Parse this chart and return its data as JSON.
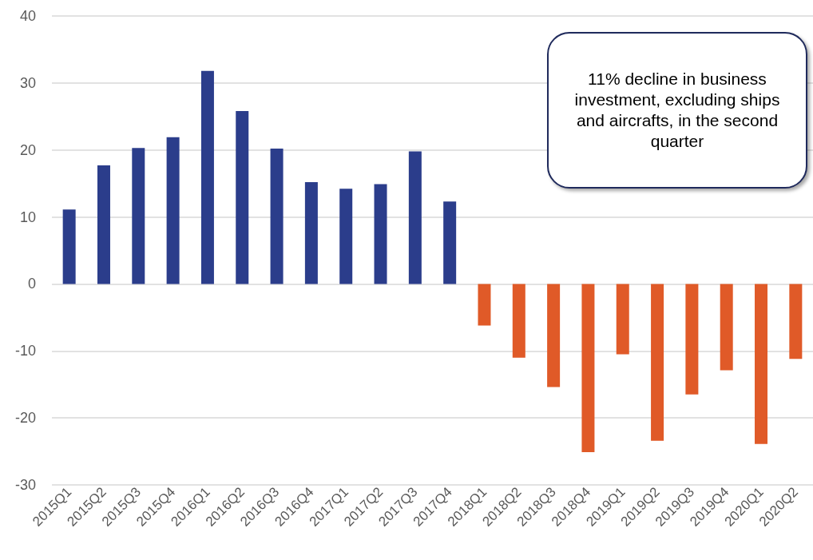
{
  "chart_data": {
    "type": "bar",
    "categories": [
      "2015Q1",
      "2015Q2",
      "2015Q3",
      "2015Q4",
      "2016Q1",
      "2016Q2",
      "2016Q3",
      "2016Q4",
      "2017Q1",
      "2017Q2",
      "2017Q3",
      "2017Q4",
      "2018Q1",
      "2018Q2",
      "2018Q3",
      "2018Q4",
      "2019Q1",
      "2019Q2",
      "2019Q3",
      "2019Q4",
      "2020Q1",
      "2020Q2"
    ],
    "values": [
      11.1,
      17.7,
      20.3,
      21.9,
      31.8,
      25.8,
      20.2,
      15.2,
      14.2,
      14.9,
      19.8,
      12.3,
      -6.2,
      -11.0,
      -15.4,
      -25.1,
      -10.5,
      -23.4,
      -16.5,
      -12.9,
      -23.9,
      -11.2
    ],
    "colors": [
      "#2b3d8b",
      "#2b3d8b",
      "#2b3d8b",
      "#2b3d8b",
      "#2b3d8b",
      "#2b3d8b",
      "#2b3d8b",
      "#2b3d8b",
      "#2b3d8b",
      "#2b3d8b",
      "#2b3d8b",
      "#2b3d8b",
      "#e05a28",
      "#e05a28",
      "#e05a28",
      "#e05a28",
      "#e05a28",
      "#e05a28",
      "#e05a28",
      "#e05a28",
      "#e05a28",
      "#e05a28"
    ],
    "ylim": [
      -30,
      40
    ],
    "yticks": [
      -30,
      -20,
      -10,
      0,
      10,
      20,
      30,
      40
    ],
    "grid": "y",
    "annotations": [
      "11% decline in business investment, excluding ships and aircrafts, in the second quarter"
    ]
  }
}
